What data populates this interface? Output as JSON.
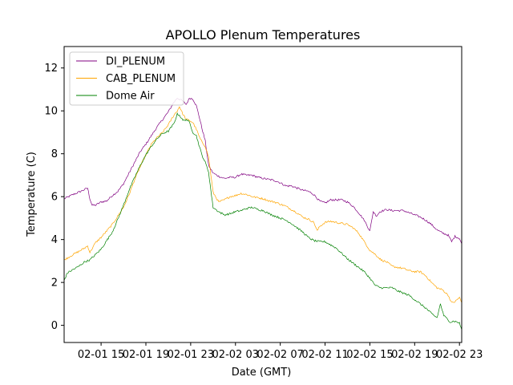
{
  "chart_data": {
    "type": "line",
    "title": "APOLLO Plenum Temperatures",
    "xlabel": "Date (GMT)",
    "ylabel": "Temperature (C)",
    "xlim": [
      11.7,
      47.2
    ],
    "ylim": [
      -0.8,
      13.0
    ],
    "x_unit": "hours since 02-01 00:00 GMT",
    "xticks": [
      {
        "value": 15,
        "label": "02-01 15"
      },
      {
        "value": 19,
        "label": "02-01 19"
      },
      {
        "value": 23,
        "label": "02-01 23"
      },
      {
        "value": 27,
        "label": "02-02 03"
      },
      {
        "value": 31,
        "label": "02-02 07"
      },
      {
        "value": 35,
        "label": "02-02 11"
      },
      {
        "value": 39,
        "label": "02-02 15"
      },
      {
        "value": 43,
        "label": "02-02 19"
      },
      {
        "value": 47,
        "label": "02-02 23"
      }
    ],
    "yticks": [
      0,
      2,
      4,
      6,
      8,
      10,
      12
    ],
    "legend_position": "top-left",
    "series": [
      {
        "name": "DI_PLENUM",
        "color": "#800080",
        "x": [
          11.7,
          12.5,
          13.2,
          13.8,
          14.0,
          14.2,
          14.5,
          15.0,
          15.5,
          16.0,
          16.5,
          17.0,
          17.5,
          18.0,
          18.5,
          19.0,
          19.5,
          20.0,
          20.5,
          21.0,
          21.5,
          21.8,
          22.0,
          22.3,
          22.6,
          22.9,
          23.2,
          23.5,
          23.8,
          24.0,
          24.3,
          24.6,
          25.0,
          25.5,
          26.0,
          26.5,
          27.0,
          27.5,
          28.0,
          28.5,
          29.0,
          29.5,
          30.0,
          30.5,
          31.0,
          31.5,
          32.0,
          32.5,
          33.0,
          33.5,
          34.0,
          34.5,
          35.0,
          35.5,
          36.0,
          36.5,
          37.0,
          37.5,
          38.0,
          38.5,
          38.8,
          39.0,
          39.3,
          39.6,
          39.9,
          40.2,
          40.5,
          41.0,
          41.5,
          42.0,
          42.5,
          43.0,
          43.5,
          44.0,
          44.5,
          45.0,
          45.5,
          46.0,
          46.3,
          46.6,
          47.0,
          47.2
        ],
        "values": [
          5.9,
          6.1,
          6.25,
          6.4,
          5.9,
          5.6,
          5.6,
          5.75,
          5.8,
          6.05,
          6.25,
          6.6,
          7.1,
          7.6,
          8.1,
          8.45,
          8.85,
          9.25,
          9.6,
          9.95,
          10.4,
          10.6,
          10.55,
          10.45,
          10.3,
          10.6,
          10.55,
          10.25,
          9.65,
          9.2,
          8.6,
          7.45,
          7.1,
          6.95,
          6.85,
          6.9,
          6.9,
          7.05,
          7.0,
          7.0,
          6.9,
          6.85,
          6.8,
          6.75,
          6.65,
          6.5,
          6.5,
          6.4,
          6.3,
          6.25,
          6.1,
          5.8,
          5.7,
          5.85,
          5.85,
          5.85,
          5.75,
          5.55,
          5.25,
          4.9,
          4.6,
          4.4,
          5.3,
          5.1,
          5.3,
          5.35,
          5.4,
          5.35,
          5.35,
          5.35,
          5.25,
          5.15,
          5.05,
          4.9,
          4.7,
          4.45,
          4.3,
          4.2,
          3.9,
          4.15,
          4.05,
          3.8
        ]
      },
      {
        "name": "CAB_PLENUM",
        "color": "#FFA500",
        "x": [
          11.7,
          12.5,
          13.2,
          13.8,
          14.0,
          14.5,
          15.0,
          15.5,
          16.0,
          16.5,
          17.0,
          17.5,
          18.0,
          18.5,
          19.0,
          19.5,
          20.0,
          20.5,
          21.0,
          21.5,
          21.8,
          22.0,
          22.3,
          22.6,
          22.9,
          23.2,
          23.5,
          23.8,
          24.0,
          24.3,
          24.6,
          25.0,
          25.5,
          26.0,
          26.5,
          27.0,
          27.5,
          28.0,
          28.5,
          29.0,
          29.5,
          30.0,
          30.5,
          31.0,
          31.5,
          32.0,
          32.5,
          33.0,
          33.5,
          34.0,
          34.3,
          34.5,
          35.0,
          35.5,
          36.0,
          36.5,
          37.0,
          37.5,
          38.0,
          38.5,
          39.0,
          39.5,
          40.0,
          40.5,
          41.0,
          41.5,
          42.0,
          42.5,
          43.0,
          43.5,
          44.0,
          44.5,
          45.0,
          45.5,
          46.0,
          46.3,
          46.6,
          47.0,
          47.2
        ],
        "values": [
          3.05,
          3.3,
          3.5,
          3.7,
          3.4,
          3.85,
          4.1,
          4.4,
          4.7,
          5.1,
          5.5,
          6.1,
          6.8,
          7.4,
          7.95,
          8.45,
          8.75,
          9.0,
          9.35,
          9.8,
          10.0,
          10.2,
          9.85,
          9.6,
          9.55,
          9.45,
          9.15,
          8.75,
          8.55,
          8.35,
          7.85,
          6.2,
          5.75,
          5.85,
          6.0,
          6.05,
          6.15,
          6.1,
          6.0,
          5.95,
          5.9,
          5.8,
          5.75,
          5.65,
          5.55,
          5.4,
          5.25,
          5.05,
          4.95,
          4.8,
          4.4,
          4.6,
          4.8,
          4.85,
          4.8,
          4.75,
          4.7,
          4.55,
          4.3,
          3.9,
          3.5,
          3.3,
          3.05,
          2.95,
          2.75,
          2.7,
          2.65,
          2.55,
          2.5,
          2.5,
          2.3,
          2.0,
          1.75,
          1.65,
          1.4,
          1.05,
          1.1,
          1.3,
          1.05
        ]
      },
      {
        "name": "Dome Air",
        "color": "#008000",
        "x": [
          11.7,
          12.0,
          12.5,
          13.0,
          13.5,
          14.0,
          14.5,
          15.0,
          15.5,
          16.0,
          16.5,
          17.0,
          17.5,
          18.0,
          18.5,
          19.0,
          19.5,
          20.0,
          20.5,
          21.0,
          21.5,
          21.8,
          22.0,
          22.3,
          22.6,
          22.9,
          23.2,
          23.5,
          23.8,
          24.0,
          24.3,
          24.6,
          24.8,
          25.0,
          25.5,
          26.0,
          26.5,
          27.0,
          27.5,
          28.0,
          28.5,
          29.0,
          29.5,
          30.0,
          30.5,
          31.0,
          31.5,
          32.0,
          32.5,
          33.0,
          33.5,
          34.0,
          34.5,
          35.0,
          35.5,
          36.0,
          36.5,
          37.0,
          37.5,
          38.0,
          38.5,
          39.0,
          39.5,
          40.0,
          40.5,
          41.0,
          41.5,
          42.0,
          42.5,
          43.0,
          43.5,
          44.0,
          44.5,
          45.0,
          45.3,
          45.6,
          45.9,
          46.2,
          46.5,
          46.8,
          47.0,
          47.2
        ],
        "values": [
          2.1,
          2.45,
          2.6,
          2.75,
          2.95,
          3.05,
          3.3,
          3.55,
          3.95,
          4.35,
          4.95,
          5.6,
          6.3,
          6.9,
          7.45,
          7.95,
          8.35,
          8.7,
          8.95,
          9.05,
          9.4,
          9.85,
          9.8,
          9.55,
          9.6,
          9.45,
          9.0,
          8.85,
          8.3,
          7.95,
          7.6,
          7.15,
          6.3,
          5.5,
          5.3,
          5.15,
          5.2,
          5.3,
          5.35,
          5.45,
          5.5,
          5.4,
          5.35,
          5.2,
          5.1,
          5.0,
          4.9,
          4.75,
          4.55,
          4.35,
          4.1,
          3.95,
          3.9,
          3.9,
          3.75,
          3.6,
          3.35,
          3.1,
          2.9,
          2.7,
          2.5,
          2.2,
          1.85,
          1.75,
          1.75,
          1.75,
          1.6,
          1.5,
          1.4,
          1.2,
          1.0,
          0.8,
          0.55,
          0.35,
          1.0,
          0.45,
          0.3,
          0.15,
          0.2,
          0.15,
          0.1,
          -0.2
        ]
      }
    ]
  }
}
